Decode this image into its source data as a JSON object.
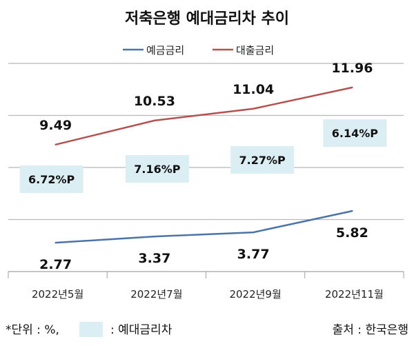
{
  "chart_data": {
    "type": "line",
    "title": "저축은행 예대금리차 추이",
    "categories": [
      "2022년5월",
      "2022년7월",
      "2022년9월",
      "2022년11월"
    ],
    "series": [
      {
        "name": "예금금리",
        "color": "#4a74a8",
        "values": [
          2.77,
          3.37,
          3.77,
          5.82
        ],
        "labels": [
          "2.77",
          "3.37",
          "3.77",
          "5.82"
        ],
        "ylim": [
          0,
          20
        ]
      },
      {
        "name": "대출금리",
        "color": "#b5504d",
        "values": [
          9.49,
          10.53,
          11.04,
          11.96
        ],
        "labels": [
          "9.49",
          "10.53",
          "11.04",
          "11.96"
        ],
        "ylim": [
          4,
          13
        ]
      }
    ],
    "spread_labels": [
      "6.72%P",
      "7.16%P",
      "7.27%P",
      "6.14%P"
    ],
    "spread_color": "#dbeef4",
    "grid": true,
    "legend": "top-center",
    "footnote_unit": "*단위 : %,",
    "footnote_spread": ": 예대금리차",
    "source": "출처 : 한국은행"
  }
}
